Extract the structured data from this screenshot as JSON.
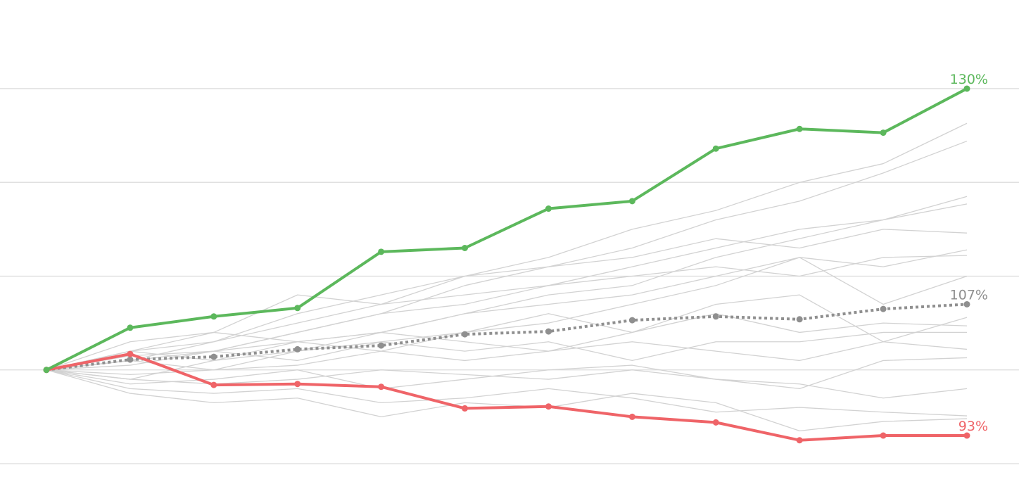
{
  "chart_data": {
    "type": "line",
    "categories": [
      null,
      null,
      null,
      null,
      null,
      null,
      null,
      null,
      null,
      null,
      null,
      null
    ],
    "ylim": [
      87.3,
      139.45
    ],
    "yticks": [
      90,
      100,
      110,
      120,
      130
    ],
    "grid": true,
    "series": [
      {
        "color": "#d2d2d2",
        "values": [
          100,
          102,
          103,
          105,
          107,
          110,
          112,
          115,
          117,
          120,
          122,
          126.3
        ]
      },
      {
        "color": "#d2d2d2",
        "values": [
          100,
          101,
          102,
          104,
          106,
          109,
          111,
          113,
          116,
          118,
          121,
          124.4
        ]
      },
      {
        "color": "#d2d2d2",
        "values": [
          100,
          101.5,
          102,
          104,
          106,
          107,
          109,
          111,
          113,
          115,
          116,
          118.5
        ]
      },
      {
        "color": "#d2d2d2",
        "values": [
          100,
          100.5,
          102,
          103,
          104,
          106,
          108,
          109,
          112,
          114,
          116,
          117.7
        ]
      },
      {
        "color": "#d2d2d2",
        "values": [
          100,
          101,
          103,
          106,
          108,
          110,
          111,
          112,
          114,
          113,
          115,
          114.6
        ]
      },
      {
        "color": "#d2d2d2",
        "values": [
          100,
          102,
          101,
          103,
          104,
          106,
          107,
          108,
          110,
          112,
          111,
          112.8
        ]
      },
      {
        "color": "#d2d2d2",
        "values": [
          100,
          103,
          104,
          108,
          107,
          108,
          109,
          110,
          111,
          110,
          112,
          112.2
        ]
      },
      {
        "color": "#d2d2d2",
        "values": [
          100,
          101,
          102,
          101,
          103,
          104,
          105,
          107,
          109,
          112,
          107,
          110
        ]
      },
      {
        "color": "#d2d2d2",
        "values": [
          100,
          102,
          104,
          103,
          102,
          104,
          106,
          104,
          107,
          108,
          103,
          105.6
        ]
      },
      {
        "color": "#d2d2d2",
        "values": [
          100,
          99,
          101,
          102,
          104,
          103,
          102,
          104,
          106,
          104,
          105,
          104.7
        ]
      },
      {
        "color": "#d2d2d2",
        "values": [
          100,
          101,
          100,
          102,
          103,
          102,
          103,
          101,
          103,
          103,
          104,
          104
        ]
      },
      {
        "color": "#d2d2d2",
        "values": [
          100,
          99.5,
          100,
          100.5,
          102,
          101,
          102,
          103,
          102,
          101,
          103,
          102.2
        ]
      },
      {
        "color": "#d2d2d2",
        "values": [
          100,
          98.5,
          99,
          100,
          98,
          99,
          100,
          100.5,
          99,
          98,
          101,
          101.3
        ]
      },
      {
        "color": "#d2d2d2",
        "values": [
          100,
          98,
          97.5,
          98,
          96.5,
          97,
          98,
          97,
          95.5,
          96,
          95.5,
          95.1
        ]
      },
      {
        "color": "#d2d2d2",
        "values": [
          100,
          97.5,
          96.5,
          97,
          95,
          96.5,
          96,
          97.5,
          96.5,
          93.5,
          94.5,
          94.8
        ]
      },
      {
        "color": "#d2d2d2",
        "values": [
          100,
          99,
          98.5,
          99,
          100,
          99.5,
          99,
          100,
          99,
          98.5,
          97,
          98
        ]
      },
      {
        "color": "#8f8f8f",
        "line_style": "dotted",
        "markers": true,
        "values": [
          100,
          101.1,
          101.4,
          102.2,
          102.6,
          103.8,
          104.1,
          105.3,
          105.7,
          105.4,
          106.5,
          107
        ],
        "value_labels": [
          null,
          null,
          null,
          null,
          null,
          null,
          null,
          null,
          null,
          null,
          null,
          "107%"
        ]
      },
      {
        "color": "#ef6468",
        "line_style": "solid",
        "markers": true,
        "values": [
          100,
          101.7,
          98.4,
          98.5,
          98.2,
          95.9,
          96.1,
          95.0,
          94.4,
          92.5,
          93.0,
          93
        ],
        "value_labels": [
          null,
          null,
          null,
          null,
          null,
          null,
          null,
          null,
          null,
          null,
          null,
          "93%"
        ]
      },
      {
        "color": "#5cb85c",
        "line_style": "solid",
        "markers": true,
        "values": [
          100,
          104.5,
          105.7,
          106.6,
          112.6,
          113.0,
          117.2,
          118.0,
          123.6,
          125.7,
          125.3,
          130
        ],
        "value_labels": [
          null,
          null,
          null,
          null,
          null,
          null,
          null,
          null,
          null,
          null,
          null,
          "130%"
        ]
      }
    ]
  }
}
